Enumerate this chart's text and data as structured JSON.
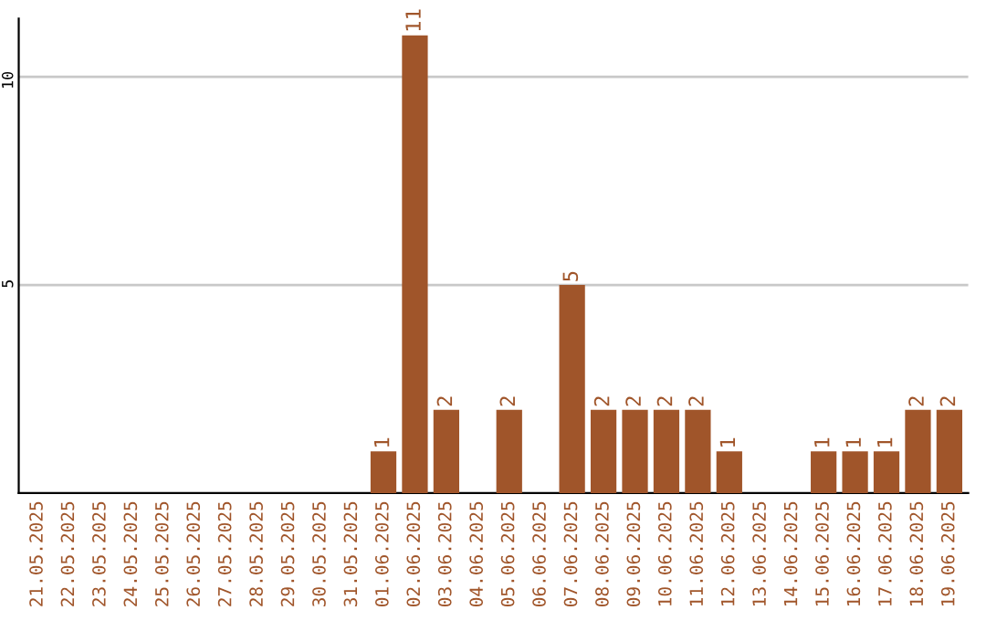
{
  "chart_data": {
    "type": "bar",
    "categories": [
      "21.05.2025",
      "22.05.2025",
      "23.05.2025",
      "24.05.2025",
      "25.05.2025",
      "26.05.2025",
      "27.05.2025",
      "28.05.2025",
      "29.05.2025",
      "30.05.2025",
      "31.05.2025",
      "01.06.2025",
      "02.06.2025",
      "03.06.2025",
      "04.06.2025",
      "05.06.2025",
      "06.06.2025",
      "07.06.2025",
      "08.06.2025",
      "09.06.2025",
      "10.06.2025",
      "11.06.2025",
      "12.06.2025",
      "13.06.2025",
      "14.06.2025",
      "15.06.2025",
      "16.06.2025",
      "17.06.2025",
      "18.06.2025",
      "19.06.2025"
    ],
    "values": [
      0,
      0,
      0,
      0,
      0,
      0,
      0,
      0,
      0,
      0,
      0,
      1,
      11,
      2,
      0,
      2,
      0,
      5,
      2,
      2,
      2,
      2,
      1,
      0,
      0,
      1,
      1,
      1,
      2,
      2
    ],
    "value_labels": [
      null,
      null,
      null,
      null,
      null,
      null,
      null,
      null,
      null,
      null,
      null,
      "1",
      "11",
      "2",
      null,
      "2",
      null,
      "5",
      "2",
      "2",
      "2",
      "2",
      "1",
      null,
      null,
      "1",
      "1",
      "1",
      "2",
      "2"
    ],
    "color": "#a0552a",
    "ylim": [
      0,
      11.4
    ],
    "yticks": [
      5,
      10
    ],
    "grid": "y"
  }
}
